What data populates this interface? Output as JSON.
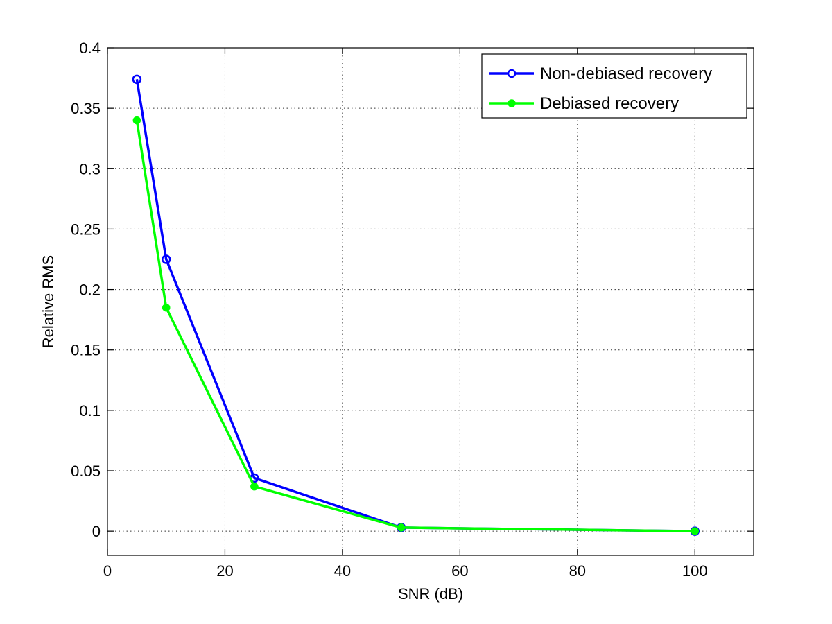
{
  "chart_data": {
    "type": "line",
    "title": "",
    "xlabel": "SNR (dB)",
    "ylabel": "Relative RMS",
    "xlim": [
      0,
      110
    ],
    "ylim": [
      -0.02,
      0.4
    ],
    "xticks": [
      0,
      20,
      40,
      60,
      80,
      100
    ],
    "yticks": [
      0,
      0.05,
      0.1,
      0.15,
      0.2,
      0.25,
      0.3,
      0.35,
      0.4
    ],
    "xtick_labels": [
      "0",
      "20",
      "40",
      "60",
      "80",
      "100"
    ],
    "ytick_labels": [
      "0",
      "0.05",
      "0.1",
      "0.15",
      "0.2",
      "0.25",
      "0.3",
      "0.35",
      "0.4"
    ],
    "grid": true,
    "legend_position": "top-right",
    "series": [
      {
        "name": "Non-debiased recovery",
        "color": "#0000ff",
        "marker": "open-circle",
        "x": [
          5,
          10,
          25,
          50,
          100
        ],
        "y": [
          0.374,
          0.225,
          0.044,
          0.003,
          0.0
        ]
      },
      {
        "name": "Debiased recovery",
        "color": "#00ff00",
        "marker": "filled-circle",
        "x": [
          5,
          10,
          25,
          50,
          100
        ],
        "y": [
          0.34,
          0.185,
          0.037,
          0.003,
          0.0
        ]
      }
    ]
  }
}
